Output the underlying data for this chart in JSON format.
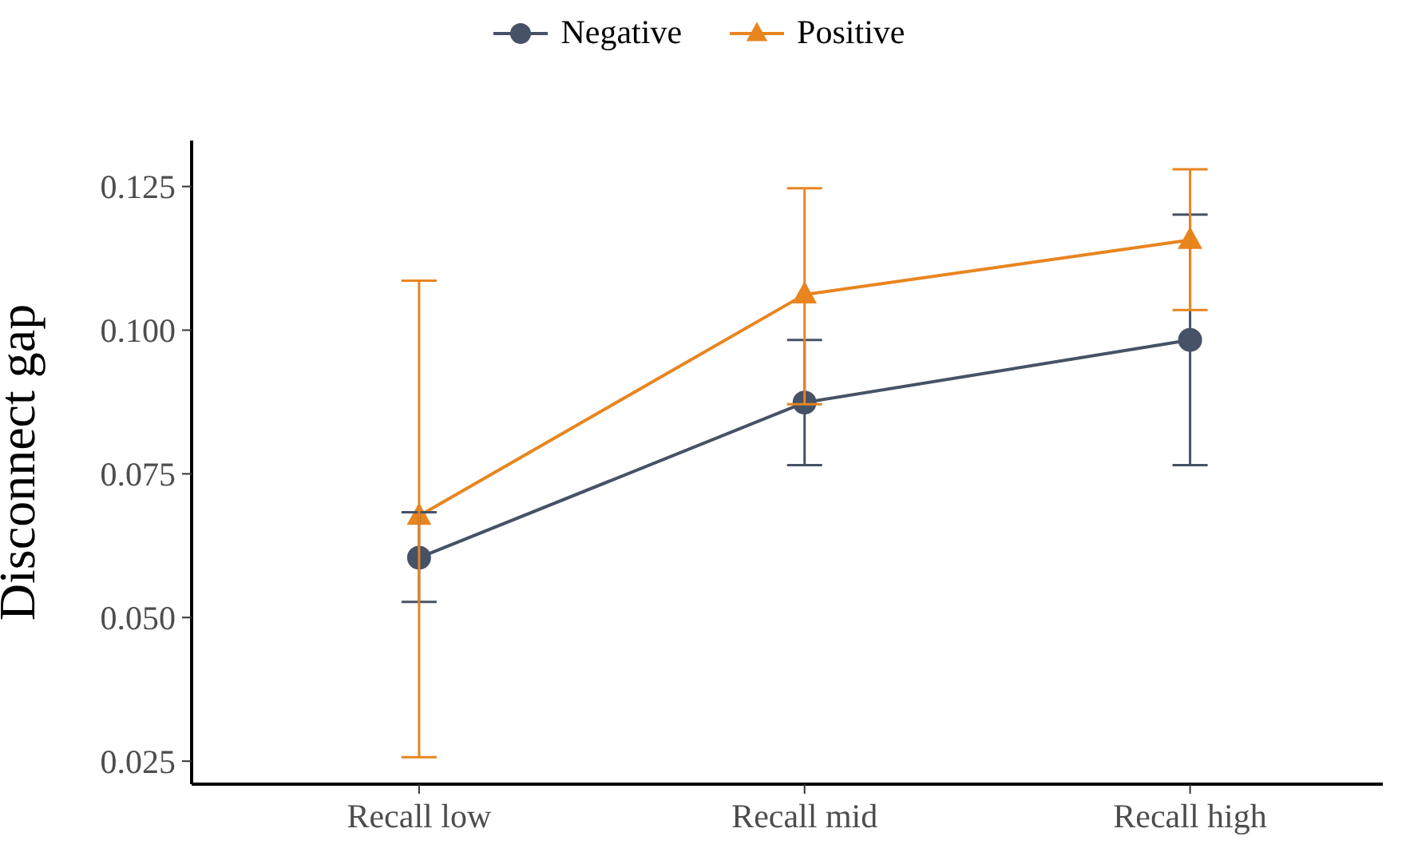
{
  "chart_data": {
    "type": "line",
    "ylabel": "Disconnect gap",
    "categories": [
      "Recall low",
      "Recall mid",
      "Recall high"
    ],
    "series": [
      {
        "name": "Negative",
        "color": "#465266",
        "marker": "circle",
        "values": [
          0.0604,
          0.0874,
          0.0983
        ],
        "errors": [
          [
            0.0527,
            0.0683
          ],
          [
            0.0765,
            0.0983
          ],
          [
            0.0765,
            0.1201
          ]
        ]
      },
      {
        "name": "Positive",
        "color": "#e8851f",
        "marker": "triangle",
        "values": [
          0.0677,
          0.1062,
          0.1157
        ],
        "errors": [
          [
            0.0257,
            0.1086
          ],
          [
            0.0871,
            0.1247
          ],
          [
            0.1035,
            0.128
          ]
        ]
      }
    ],
    "ylim": [
      0.021,
      0.133
    ],
    "yticks": [
      {
        "value": 0.025,
        "label": "0.025"
      },
      {
        "value": 0.05,
        "label": "0.050"
      },
      {
        "value": 0.075,
        "label": "0.075"
      },
      {
        "value": 0.1,
        "label": "0.100"
      },
      {
        "value": 0.125,
        "label": "0.125"
      }
    ],
    "grid": false,
    "legend": "top"
  }
}
